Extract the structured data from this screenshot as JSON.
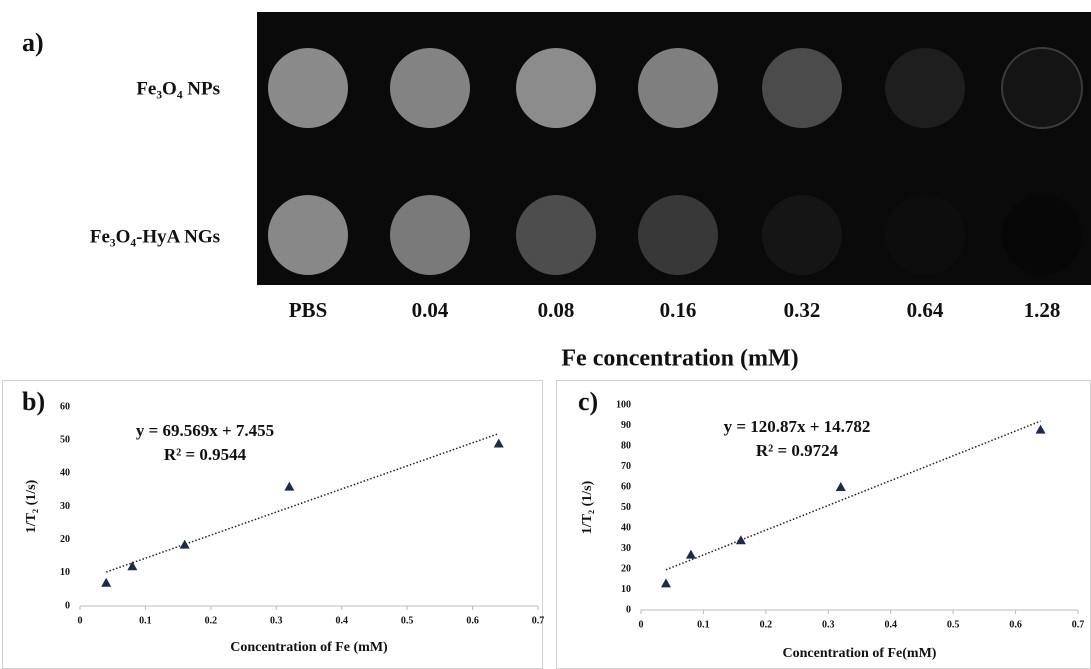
{
  "panel_a": {
    "label": "a)",
    "rows": [
      "Fe₃O₄ NPs",
      "Fe₃O₄-HyA NGs"
    ],
    "columns": [
      "PBS",
      "0.04",
      "0.08",
      "0.16",
      "0.32",
      "0.64",
      "1.28"
    ],
    "axis_title": "Fe concentration (mM)"
  },
  "chart_data": [
    {
      "type": "scatter",
      "label": "b)",
      "x_label": "Concentration of Fe (mM)",
      "y_label": "1/T₂ (1/s)",
      "x": [
        0.04,
        0.08,
        0.16,
        0.32,
        0.64
      ],
      "values": [
        7,
        12,
        18.5,
        36,
        49
      ],
      "color": "#1f2a48",
      "xlim": [
        0,
        0.7
      ],
      "xticks": [
        0,
        0.1,
        0.2,
        0.3,
        0.4,
        0.5,
        0.6,
        0.7
      ],
      "ylim": [
        0,
        60
      ],
      "yticks": [
        0,
        10,
        20,
        30,
        40,
        50,
        60
      ],
      "trendline": {
        "slope": 69.569,
        "intercept": 7.455,
        "label": "y = 69.569x + 7.455",
        "r2_label": "R² = 0.9544"
      }
    },
    {
      "type": "scatter",
      "label": "c)",
      "x_label": "Concentration of Fe(mM)",
      "y_label": "1/T₂ (1/s)",
      "x": [
        0.04,
        0.08,
        0.16,
        0.32,
        0.64
      ],
      "values": [
        13,
        27,
        34,
        60,
        88
      ],
      "color": "#1f2a48",
      "xlim": [
        0,
        0.7
      ],
      "xticks": [
        0,
        0.1,
        0.2,
        0.3,
        0.4,
        0.5,
        0.6,
        0.7
      ],
      "ylim": [
        0,
        100
      ],
      "yticks": [
        0,
        10,
        20,
        30,
        40,
        50,
        60,
        70,
        80,
        90,
        100
      ],
      "trendline": {
        "slope": 120.87,
        "intercept": 14.782,
        "label": "y = 120.87x + 14.782",
        "r2_label": "R² = 0.9724"
      }
    }
  ]
}
